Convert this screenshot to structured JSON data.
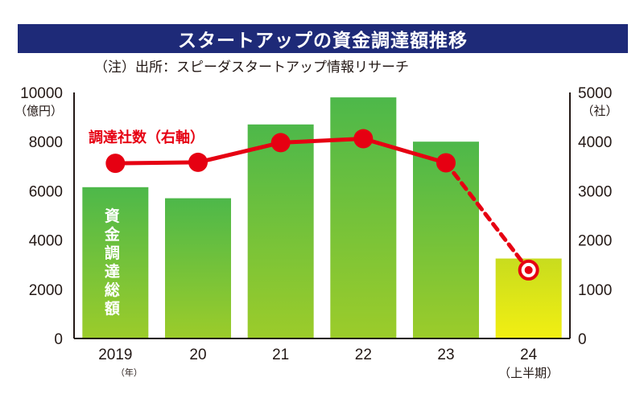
{
  "title": "スタートアップの資金調達額推移",
  "source_note": "（注）出所：スピーダスタートアップ情報リサーチ",
  "colors": {
    "banner": "#1e2a78",
    "bar_top": "#4db84a",
    "bar_bottom": "#9ccc2a",
    "bar_partial_top": "#c8dc1e",
    "bar_partial_bottom": "#f2ef12",
    "line": "#e60012"
  },
  "chart_data": {
    "type": "bar+line",
    "categories": [
      "2019",
      "20",
      "21",
      "22",
      "23",
      "24"
    ],
    "x_unit_label": "（年）",
    "x_last_sub_label": "（上半期）",
    "left_axis": {
      "unit_label": "（億円）",
      "ylim": [
        0,
        10000
      ],
      "ticks": [
        "0",
        "2000",
        "4000",
        "6000",
        "8000",
        "10000"
      ]
    },
    "right_axis": {
      "unit_label": "（社）",
      "ylim": [
        0,
        5000
      ],
      "ticks": [
        "0",
        "1000",
        "2000",
        "3000",
        "4000",
        "5000"
      ]
    },
    "bar_series": {
      "label_chars": [
        "資",
        "金",
        "調",
        "達",
        "総",
        "額"
      ],
      "values": [
        6150,
        5700,
        8700,
        9800,
        8000,
        3250
      ]
    },
    "line_series": {
      "label": "調達社数（右軸）",
      "values": [
        3560,
        3580,
        3980,
        4060,
        3570,
        1390
      ],
      "axis": "right",
      "last_segment": "dashed"
    },
    "grid": false
  }
}
